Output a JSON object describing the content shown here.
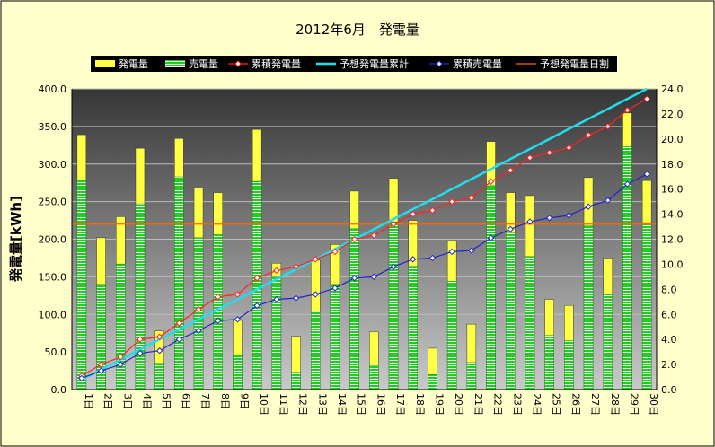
{
  "chart_data": {
    "type": "bar",
    "title": "2012年6月　発電量",
    "ylabel": "発電量[kWh]",
    "ylim": [
      0,
      400
    ],
    "y2lim": [
      0,
      24
    ],
    "yticks": [
      "0.0",
      "50.0",
      "100.0",
      "150.0",
      "200.0",
      "250.0",
      "300.0",
      "350.0",
      "400.0"
    ],
    "y2ticks": [
      "0.0",
      "2.0",
      "4.0",
      "6.0",
      "8.0",
      "10.0",
      "12.0",
      "14.0",
      "16.0",
      "18.0",
      "20.0",
      "22.0",
      "24.0"
    ],
    "categories": [
      "1日",
      "2日",
      "3日",
      "4日",
      "5日",
      "6日",
      "7日",
      "8日",
      "9日",
      "10日",
      "11日",
      "12日",
      "13日",
      "14日",
      "15日",
      "16日",
      "17日",
      "18日",
      "19日",
      "20日",
      "21日",
      "22日",
      "23日",
      "24日",
      "25日",
      "26日",
      "27日",
      "28日",
      "29日",
      "30日"
    ],
    "legend": [
      "発電量",
      "売電量",
      "累積発電量",
      "予想発電量累計",
      "累積売電量",
      "予想発電量日割"
    ],
    "legend_position": "top",
    "grid": true,
    "series": [
      {
        "name": "発電量",
        "axis": "left",
        "type": "bar",
        "color": "#ffff44",
        "values": [
          339,
          202,
          230,
          321,
          78,
          334,
          268,
          262,
          92,
          346,
          168,
          71,
          172,
          193,
          264,
          77,
          281,
          225,
          55,
          198,
          87,
          330,
          262,
          258,
          120,
          112,
          282,
          175,
          368,
          278
        ]
      },
      {
        "name": "売電量",
        "axis": "left",
        "type": "bar",
        "color": "#33dd33",
        "values": [
          279,
          140,
          167,
          247,
          35,
          283,
          202,
          206,
          46,
          277,
          150,
          23,
          104,
          140,
          214,
          32,
          223,
          164,
          20,
          144,
          36,
          272,
          208,
          177,
          72,
          65,
          218,
          126,
          323,
          222
        ]
      },
      {
        "name": "累積発電量",
        "axis": "right",
        "type": "line",
        "color": "#ff2222",
        "values": [
          1.1,
          2.0,
          2.6,
          4.0,
          4.2,
          5.3,
          6.4,
          7.4,
          7.6,
          8.9,
          9.5,
          9.8,
          10.4,
          11.0,
          12.0,
          12.3,
          13.2,
          14.0,
          14.3,
          15.0,
          15.3,
          16.6,
          17.5,
          18.5,
          18.9,
          19.3,
          20.3,
          21.0,
          22.3,
          23.2
        ]
      },
      {
        "name": "予想発電量累計",
        "axis": "right",
        "type": "line",
        "color": "#22ddee",
        "values": [
          0.8,
          1.6,
          2.4,
          3.2,
          4.0,
          4.8,
          5.6,
          6.4,
          7.2,
          8.0,
          8.8,
          9.6,
          10.4,
          11.2,
          12.0,
          12.8,
          13.6,
          14.4,
          15.2,
          16.0,
          16.8,
          17.6,
          18.4,
          19.2,
          20.0,
          20.8,
          21.6,
          22.4,
          23.2,
          24.0
        ]
      },
      {
        "name": "累積売電量",
        "axis": "right",
        "type": "line",
        "color": "#2222cc",
        "values": [
          0.9,
          1.5,
          2.0,
          2.9,
          3.1,
          4.0,
          4.7,
          5.5,
          5.6,
          6.7,
          7.2,
          7.3,
          7.6,
          8.1,
          8.9,
          9.0,
          9.8,
          10.4,
          10.5,
          11.0,
          11.1,
          12.1,
          12.8,
          13.4,
          13.7,
          13.9,
          14.6,
          15.1,
          16.4,
          17.2
        ]
      },
      {
        "name": "予想発電量日割",
        "axis": "left",
        "type": "line",
        "color": "#ff6600",
        "values": [
          220,
          220,
          220,
          220,
          220,
          220,
          220,
          220,
          220,
          220,
          220,
          220,
          220,
          220,
          220,
          220,
          220,
          220,
          220,
          220,
          220,
          220,
          220,
          220,
          220,
          220,
          220,
          220,
          220,
          220
        ]
      }
    ]
  }
}
